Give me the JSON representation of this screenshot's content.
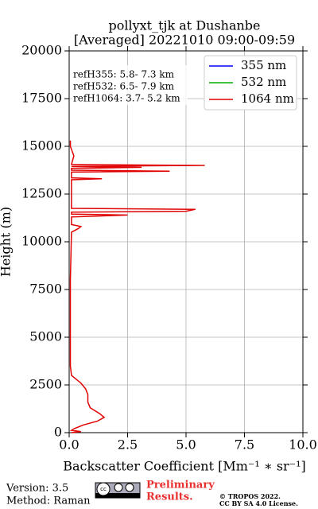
{
  "chart_data": {
    "type": "line",
    "title": "pollyxt_tjk at Dushanbe",
    "subtitle": "[Averaged] 20221010 09:00-09:59",
    "xlabel": "Backscatter Coefficient [Mm⁻¹ ∗ sr⁻¹]",
    "ylabel": "Height (m)",
    "annotations": [
      "refH355:  5.8- 7.3 km",
      "refH532:  6.5- 7.9 km",
      "refH1064:  3.7- 5.2 km"
    ],
    "y": [
      0,
      60,
      120,
      200,
      400,
      600,
      800,
      1000,
      1300,
      1600,
      2000,
      2300,
      2600,
      2800,
      3000,
      3500,
      5000,
      8000,
      10500,
      10700,
      10800,
      10900,
      11300,
      11400,
      11450,
      11550,
      11600,
      11700,
      11750,
      12500,
      13250,
      13300,
      13350,
      13650,
      13700,
      13750,
      13850,
      13900,
      13950,
      14000,
      14050,
      14500,
      15000,
      15300
    ],
    "series": [
      {
        "name": "355 nm",
        "color": "#0000ff",
        "values": [
          null,
          null,
          null,
          null,
          null,
          null,
          null,
          null,
          null,
          null,
          null,
          null,
          null,
          null,
          null,
          null,
          null,
          null,
          null,
          null,
          null,
          null,
          null,
          null,
          null,
          null,
          null,
          null,
          null,
          null,
          null,
          null,
          null,
          null,
          null,
          null,
          null,
          null,
          null,
          null,
          null,
          null,
          null,
          null
        ]
      },
      {
        "name": "532 nm",
        "color": "#00b000",
        "values": [
          null,
          null,
          null,
          null,
          null,
          null,
          null,
          null,
          null,
          null,
          null,
          null,
          null,
          null,
          null,
          null,
          null,
          null,
          null,
          null,
          null,
          null,
          null,
          null,
          null,
          null,
          null,
          null,
          null,
          null,
          null,
          null,
          null,
          null,
          null,
          null,
          null,
          null,
          null,
          null,
          null,
          null,
          null,
          null
        ]
      },
      {
        "name": "1064 nm",
        "color": "#e00000",
        "values": [
          0.1,
          0.5,
          0.1,
          0.2,
          0.6,
          1.2,
          1.5,
          1.3,
          0.9,
          0.8,
          0.8,
          0.7,
          0.5,
          0.3,
          0.1,
          0.05,
          0.05,
          0.05,
          0.1,
          0.4,
          0.5,
          0.1,
          0.1,
          2.5,
          0.1,
          0.1,
          5.0,
          5.4,
          0.1,
          0.1,
          0.1,
          1.4,
          0.1,
          0.1,
          4.3,
          0.1,
          0.1,
          3.1,
          0.1,
          5.8,
          0.1,
          0.2,
          0.05,
          0.05
        ]
      }
    ],
    "xlim": [
      0,
      10
    ],
    "xticks": [
      {
        "value": 0,
        "label": "0.0"
      },
      2.5,
      {
        "value": 5,
        "label": "5.0"
      },
      7.5,
      {
        "value": 10,
        "label": "10.0"
      }
    ],
    "ylim": [
      0,
      20000
    ],
    "yticks": [
      0,
      2500,
      5000,
      7500,
      10000,
      12500,
      15000,
      17500,
      20000
    ],
    "grid": true,
    "legend": "upper right"
  },
  "footer": {
    "version": "Version: 3.5",
    "method": "Method: Raman",
    "preliminary": [
      "Preliminary",
      "Results."
    ],
    "copyright": [
      "© TROPOS 2022.",
      "CC BY SA 4.0 License."
    ]
  }
}
